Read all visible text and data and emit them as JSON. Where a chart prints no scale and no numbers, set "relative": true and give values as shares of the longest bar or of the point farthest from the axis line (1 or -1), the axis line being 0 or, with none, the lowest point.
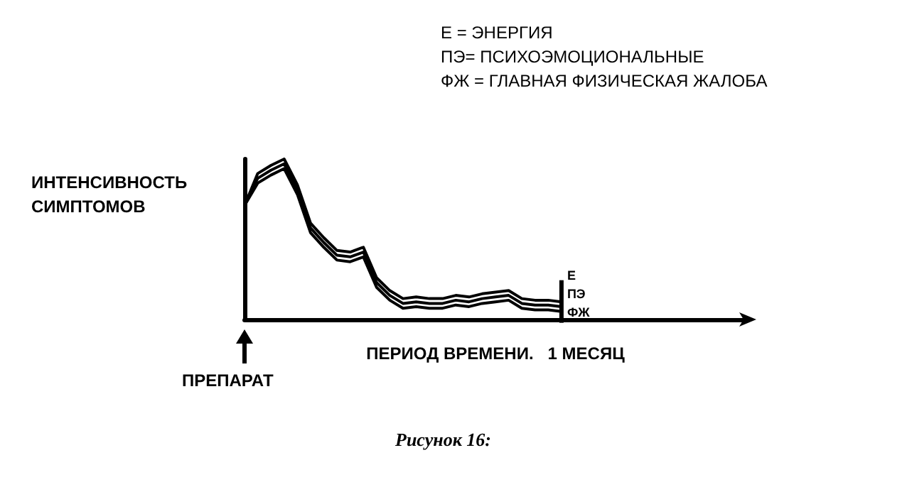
{
  "chart_data": {
    "type": "line",
    "relative": true,
    "xlabel": "ПЕРИОД ВРЕМЕНИ.   1 МЕСЯЦ",
    "ylabel": "ИНТЕНСИВНОСТЬ\nСИМПТОМОВ",
    "annotations": [
      "Е = ЭНЕРГИЯ",
      "ПЭ= ПСИХОЭМОЦИОНАЛЬНЫЕ",
      "ФЖ = ГЛАВНАЯ ФИЗИЧЕСКАЯ ЖАЛОБА",
      "ПРЕПАРАТ",
      "Рисунок 16:"
    ],
    "categories": [
      null,
      null,
      null,
      null,
      null,
      null,
      null,
      null,
      null,
      null,
      null,
      null,
      null,
      null,
      null,
      null,
      null,
      null,
      null,
      null,
      null,
      null,
      null,
      null,
      null,
      null,
      null,
      null,
      null,
      null,
      null,
      null,
      null,
      null,
      null,
      null,
      null,
      null,
      null
    ],
    "series": [
      {
        "name": "Е",
        "color": "#000000",
        "values": [
          0.71,
          0.91,
          0.96,
          1.0,
          0.84,
          0.6,
          0.51,
          0.43,
          0.42,
          0.45,
          0.26,
          0.18,
          0.13,
          0.14,
          0.13,
          0.13,
          0.15,
          0.14,
          0.16,
          0.17,
          0.18,
          0.13,
          0.12,
          0.12,
          0.11,
          null,
          null,
          null,
          null,
          null,
          null,
          null,
          null,
          null,
          null,
          null,
          null,
          null,
          null
        ]
      },
      {
        "name": "ПЭ",
        "color": "#000000",
        "values": [
          0.71,
          0.88,
          0.93,
          0.97,
          0.81,
          0.57,
          0.48,
          0.4,
          0.39,
          0.42,
          0.23,
          0.15,
          0.1,
          0.11,
          0.1,
          0.1,
          0.12,
          0.11,
          0.13,
          0.14,
          0.15,
          0.1,
          0.09,
          0.09,
          0.08,
          null,
          null,
          null,
          null,
          null,
          null,
          null,
          null,
          null,
          null,
          null,
          null,
          null,
          null
        ]
      },
      {
        "name": "ФЖ",
        "color": "#000000",
        "values": [
          0.71,
          0.85,
          0.9,
          0.94,
          0.78,
          0.54,
          0.45,
          0.37,
          0.36,
          0.39,
          0.2,
          0.12,
          0.07,
          0.08,
          0.07,
          0.07,
          0.09,
          0.08,
          0.1,
          0.11,
          0.12,
          0.07,
          0.06,
          0.06,
          0.05,
          null,
          null,
          null,
          null,
          null,
          null,
          null,
          null,
          null,
          null,
          null,
          null,
          null,
          null
        ]
      }
    ],
    "grid": false,
    "legend": false,
    "marker": "none",
    "line_style": "solid"
  }
}
